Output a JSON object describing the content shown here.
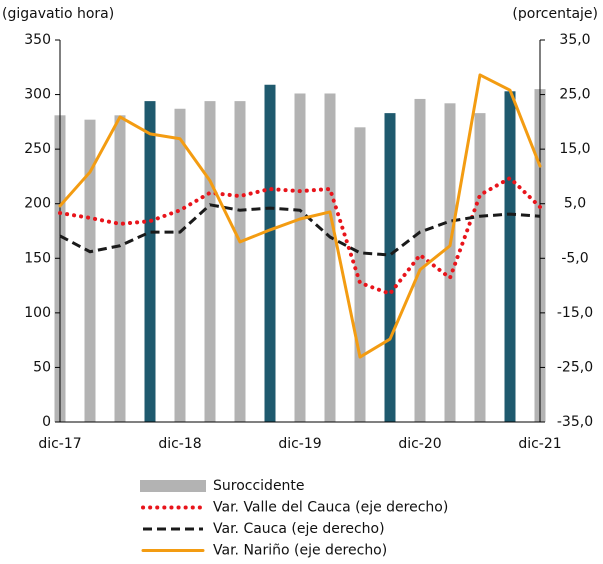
{
  "chart_data": {
    "type": "bar-line",
    "y_label": "(gigavatio  hora)",
    "y2_label": "(porcentaje)",
    "categories": [
      "dic-17",
      null,
      null,
      null,
      "dic-18",
      null,
      null,
      null,
      "dic-19",
      null,
      null,
      null,
      "dic-20",
      null,
      null,
      null,
      "dic-21"
    ],
    "ylim": [
      0,
      350
    ],
    "yticks": [
      0,
      50,
      100,
      150,
      200,
      250,
      300,
      350
    ],
    "y2lim": [
      -35,
      35
    ],
    "y2ticks": [
      {
        "value": -35,
        "label": "-35,0"
      },
      {
        "value": -25,
        "label": "-25,0"
      },
      {
        "value": -15,
        "label": "-15,0"
      },
      {
        "value": -5,
        "label": "-5,0"
      },
      {
        "value": 5,
        "label": "5,0"
      },
      {
        "value": 15,
        "label": "15,0"
      },
      {
        "value": 25,
        "label": "25,0"
      },
      {
        "value": 35,
        "label": "35,0"
      }
    ],
    "series": [
      {
        "name": "Suroccidente",
        "type": "bar",
        "color": "#b3b3b3",
        "bar_colors": [
          "#b3b3b3",
          "#b3b3b3",
          "#b3b3b3",
          "#1f5a6e",
          "#b3b3b3",
          "#b3b3b3",
          "#b3b3b3",
          "#1f5a6e",
          "#b3b3b3",
          "#b3b3b3",
          "#b3b3b3",
          "#1f5a6e",
          "#b3b3b3",
          "#b3b3b3",
          "#b3b3b3",
          "#1f5a6e",
          "#b3b3b3"
        ],
        "values": [
          281,
          277,
          281,
          294,
          287,
          294,
          294,
          309,
          301,
          301,
          270,
          283,
          296,
          292,
          283,
          303,
          305
        ]
      },
      {
        "name": "Var. Valle del Cauca (eje derecho)",
        "type": "line",
        "axis": "y2",
        "color": "#e8141b",
        "style": "dotted",
        "values": [
          3.3,
          2.4,
          1.3,
          1.8,
          3.8,
          7.0,
          6.4,
          7.7,
          7.3,
          7.7,
          -9.5,
          -11.5,
          -4.4,
          -8.6,
          6.6,
          9.7,
          4.4
        ]
      },
      {
        "name": "Var. Cauca (eje derecho)",
        "type": "line",
        "axis": "y2",
        "color": "#1a1a1a",
        "style": "dashed",
        "values": [
          -0.9,
          -3.8,
          -2.7,
          -0.2,
          -0.2,
          4.8,
          3.8,
          4.2,
          3.8,
          -1.1,
          -4.0,
          -4.4,
          -0.2,
          1.8,
          2.7,
          3.1,
          2.7
        ]
      },
      {
        "name": "Var. Nariño (eje derecho)",
        "type": "line",
        "axis": "y2",
        "color": "#f39c12",
        "style": "solid",
        "values": [
          4.6,
          10.8,
          20.9,
          17.8,
          16.9,
          9.2,
          -2.0,
          0.2,
          2.2,
          3.5,
          -23.1,
          -19.8,
          -7.1,
          -2.7,
          28.6,
          25.8,
          11.9
        ]
      }
    ]
  }
}
